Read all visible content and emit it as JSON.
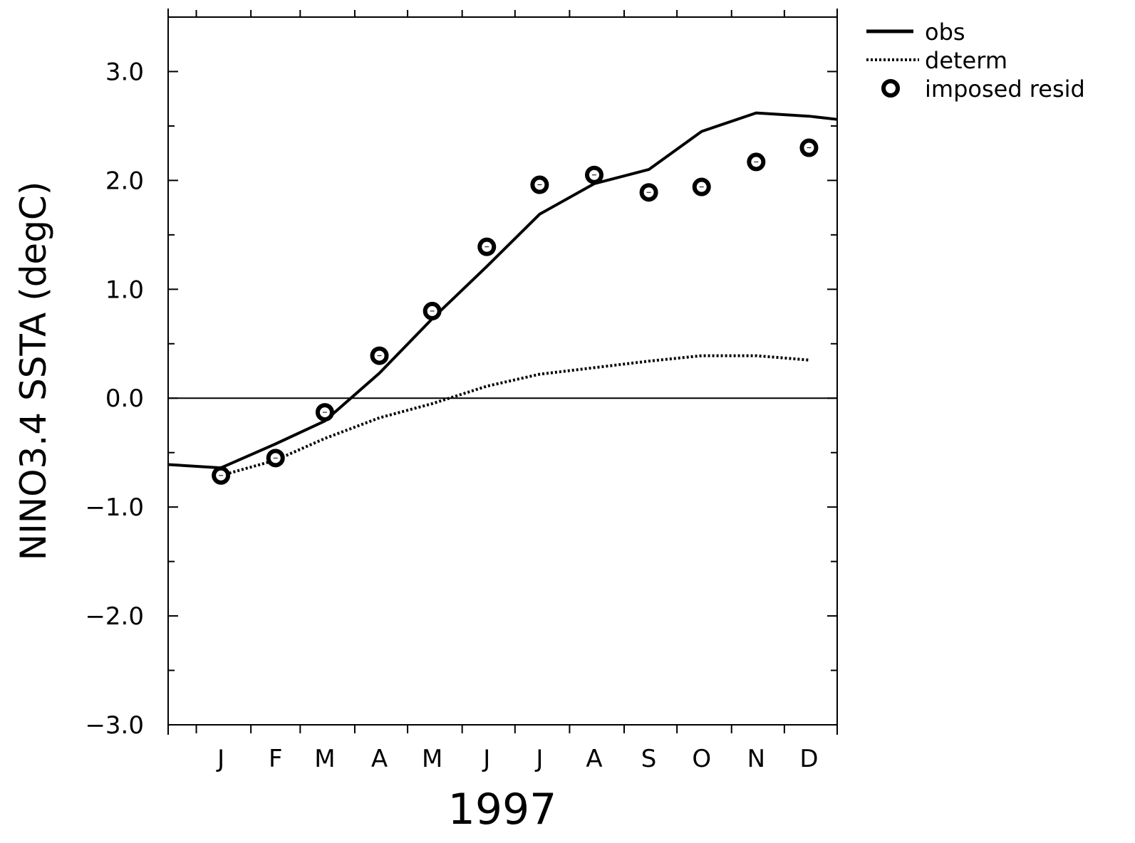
{
  "chart_data": {
    "type": "line",
    "xlabel": "1997",
    "ylabel": "NINO3.4 SSTA (degC)",
    "ylim": [
      -3.0,
      3.5
    ],
    "yticks": [
      -3.0,
      -2.0,
      -1.0,
      0.0,
      1.0,
      2.0,
      3.0
    ],
    "ytick_labels": [
      "−3.0",
      "−2.0",
      "−1.0",
      "0.0",
      "1.0",
      "2.0",
      "3.0"
    ],
    "xlim": [
      "Dec 16, 1996",
      "Dec 31, 1997"
    ],
    "categories": [
      "J",
      "F",
      "M",
      "A",
      "M",
      "J",
      "J",
      "A",
      "S",
      "O",
      "N",
      "D"
    ],
    "legend_position": "top-right, outside plot",
    "grid": false,
    "zero_line": true,
    "series": [
      {
        "name": "obs",
        "style": "solid",
        "x": [
          "Dec 16, 1996",
          "Jan 15, 1997",
          "Feb 15, 1997",
          "Mar 15, 1997",
          "Apr 15, 1997",
          "May 15, 1997",
          "Jun 15, 1997",
          "Jul 15, 1997",
          "Aug 15, 1997",
          "Sep 15, 1997",
          "Oct 15, 1997",
          "Nov 15, 1997",
          "Dec 15, 1997",
          "Dec 31, 1997"
        ],
        "values": [
          -0.61,
          -0.64,
          -0.42,
          -0.21,
          0.23,
          0.73,
          1.21,
          1.69,
          1.97,
          2.1,
          2.45,
          2.62,
          2.59,
          2.56
        ]
      },
      {
        "name": "determ",
        "style": "dotted",
        "x": [
          "Jan 15, 1997",
          "Feb 15, 1997",
          "Mar 15, 1997",
          "Apr 15, 1997",
          "May 15, 1997",
          "Jun 15, 1997",
          "Jul 15, 1997",
          "Aug 15, 1997",
          "Sep 15, 1997",
          "Oct 15, 1997",
          "Nov 15, 1997",
          "Dec 15, 1997"
        ],
        "values": [
          -0.71,
          -0.57,
          -0.37,
          -0.18,
          -0.05,
          0.11,
          0.22,
          0.28,
          0.34,
          0.39,
          0.39,
          0.35
        ]
      },
      {
        "name": "imposed resid",
        "style": "markers",
        "x": [
          "Jan 15, 1997",
          "Feb 15, 1997",
          "Mar 15, 1997",
          "Apr 15, 1997",
          "May 15, 1997",
          "Jun 15, 1997",
          "Jul 15, 1997",
          "Aug 15, 1997",
          "Sep 15, 1997",
          "Oct 15, 1997",
          "Nov 15, 1997",
          "Dec 15, 1997"
        ],
        "values": [
          -0.71,
          -0.55,
          -0.13,
          0.39,
          0.8,
          1.39,
          1.96,
          2.05,
          1.89,
          1.94,
          2.17,
          2.3
        ]
      }
    ]
  }
}
